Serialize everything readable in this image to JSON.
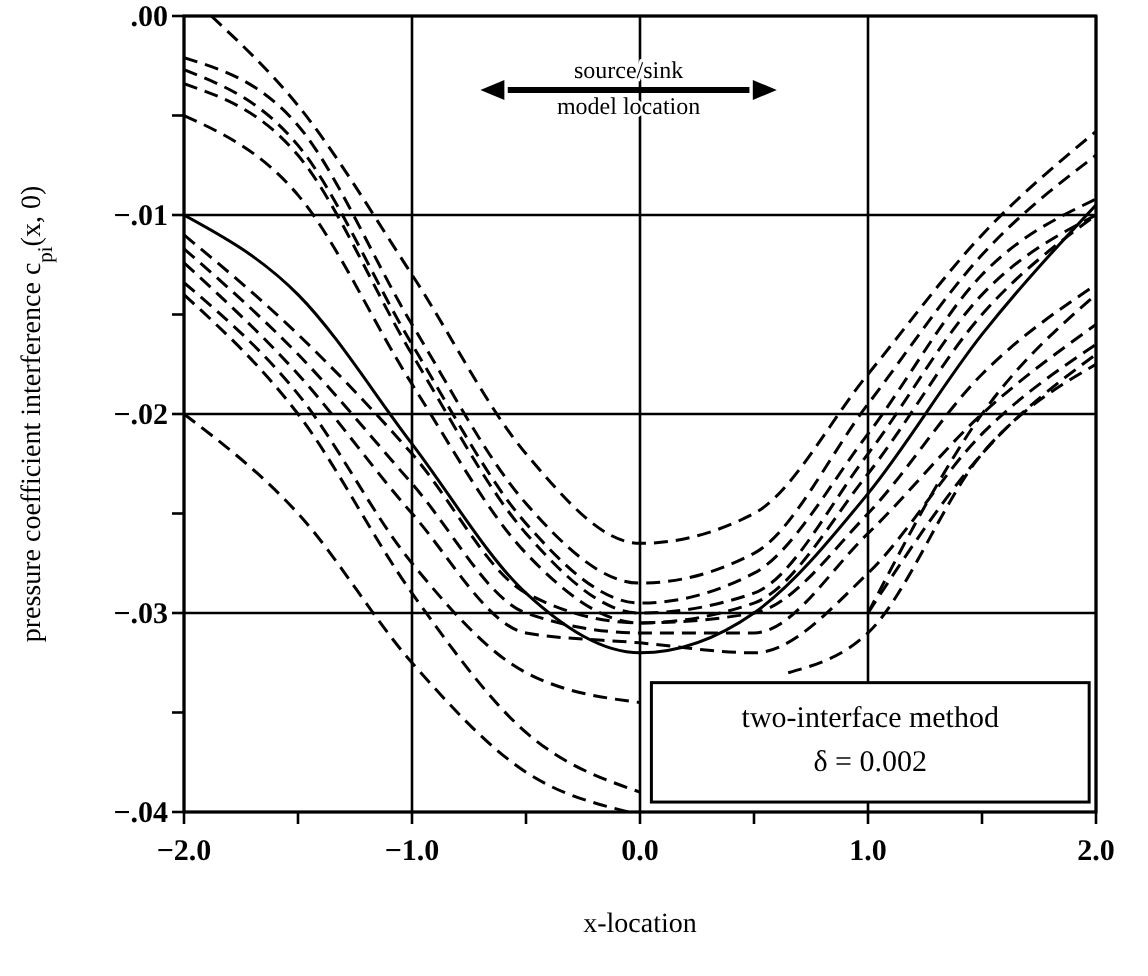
{
  "chart_data": {
    "type": "line",
    "xlabel": "x-location",
    "ylabel": "pressure coefficient interference c$_{pi}$(x, 0)",
    "x": [
      -2,
      -1.5,
      -1,
      -0.5,
      0,
      0.5,
      1,
      1.5,
      2
    ],
    "xlim": [
      -2,
      2
    ],
    "ylim": [
      -0.04,
      0
    ],
    "xticks": [
      {
        "value": -2,
        "label": "−2.0"
      },
      {
        "value": -1.5,
        "label": null
      },
      {
        "value": -1,
        "label": "−1.0"
      },
      {
        "value": -0.5,
        "label": null
      },
      {
        "value": 0,
        "label": "0.0"
      },
      {
        "value": 0.5,
        "label": null
      },
      {
        "value": 1,
        "label": "1.0"
      },
      {
        "value": 1.5,
        "label": null
      },
      {
        "value": 2,
        "label": "2.0"
      }
    ],
    "yticks": [
      {
        "value": -0.04,
        "label": "−.04"
      },
      {
        "value": -0.035,
        "label": null
      },
      {
        "value": -0.03,
        "label": "−.03"
      },
      {
        "value": -0.025,
        "label": null
      },
      {
        "value": -0.02,
        "label": "−.02"
      },
      {
        "value": -0.015,
        "label": null
      },
      {
        "value": -0.01,
        "label": "−.01"
      },
      {
        "value": -0.005,
        "label": null
      },
      {
        "value": 0,
        "label": ".00"
      }
    ],
    "grid": true,
    "marker": "none",
    "series": [
      {
        "color": "#000000",
        "line_style": "solid",
        "values": [
          -0.01,
          -0.014,
          -0.0215,
          -0.029,
          -0.032,
          -0.03,
          -0.024,
          -0.016,
          -0.0095
        ]
      },
      {
        "color": "#000000",
        "line_style": "dashed",
        "x": [
          -1.88,
          -1.5,
          -1,
          -0.5,
          0,
          0.5,
          1,
          1.5,
          2
        ],
        "values": [
          0,
          -0.0045,
          -0.013,
          -0.022,
          -0.0265,
          -0.025,
          -0.018,
          -0.011,
          -0.0058
        ]
      },
      {
        "color": "#000000",
        "line_style": "dashed",
        "values": [
          -0.0021,
          -0.0055,
          -0.0155,
          -0.0245,
          -0.0285,
          -0.027,
          -0.0195,
          -0.012,
          -0.007
        ]
      },
      {
        "color": "#000000",
        "line_style": "dashed",
        "values": [
          -0.0027,
          -0.0065,
          -0.0165,
          -0.0255,
          -0.0295,
          -0.028,
          -0.021,
          -0.013,
          -0.0092
        ]
      },
      {
        "color": "#000000",
        "line_style": "dashed",
        "values": [
          -0.0034,
          -0.007,
          -0.017,
          -0.026,
          -0.03,
          -0.029,
          -0.022,
          -0.014,
          -0.01
        ]
      },
      {
        "color": "#000000",
        "line_style": "dashed",
        "values": [
          -0.005,
          -0.009,
          -0.0185,
          -0.027,
          -0.0305,
          -0.0295,
          -0.023,
          -0.015,
          -0.01
        ]
      },
      {
        "color": "#000000",
        "line_style": "dashed",
        "values": [
          -0.011,
          -0.016,
          -0.022,
          -0.029,
          -0.0305,
          -0.03,
          -0.025,
          -0.018,
          -0.0135
        ]
      },
      {
        "color": "#000000",
        "line_style": "dashed",
        "values": [
          -0.0117,
          -0.017,
          -0.0235,
          -0.03,
          -0.031,
          -0.031,
          -0.026,
          -0.02,
          -0.0155
        ]
      },
      {
        "color": "#000000",
        "line_style": "dashed",
        "values": [
          -0.0124,
          -0.018,
          -0.025,
          -0.031,
          -0.0315,
          -0.032,
          -0.028,
          -0.021,
          -0.0165
        ]
      },
      {
        "color": "#000000",
        "line_style": "dashed",
        "values": [
          -0.0134,
          -0.019,
          -0.0275,
          -0.033,
          -0.0345,
          null,
          -0.03,
          -0.022,
          -0.017
        ]
      },
      {
        "color": "#000000",
        "line_style": "dashed",
        "values": [
          -0.014,
          -0.02,
          -0.029,
          -0.036,
          -0.039,
          null,
          -0.03,
          -0.02,
          -0.014
        ]
      },
      {
        "color": "#000000",
        "line_style": "dashed",
        "x": [
          -2,
          -1.5,
          -1,
          -0.5,
          -0.05
        ],
        "values": [
          -0.02,
          -0.025,
          -0.0325,
          -0.038,
          -0.04
        ]
      },
      {
        "color": "#000000",
        "line_style": "dashed",
        "x": [
          0.65,
          1,
          1.5,
          2
        ],
        "values": [
          -0.033,
          -0.031,
          -0.022,
          -0.0175
        ]
      }
    ],
    "annotations": [
      "source/sink\nmodel location",
      "two-interface method\nδ = 0.002"
    ]
  }
}
